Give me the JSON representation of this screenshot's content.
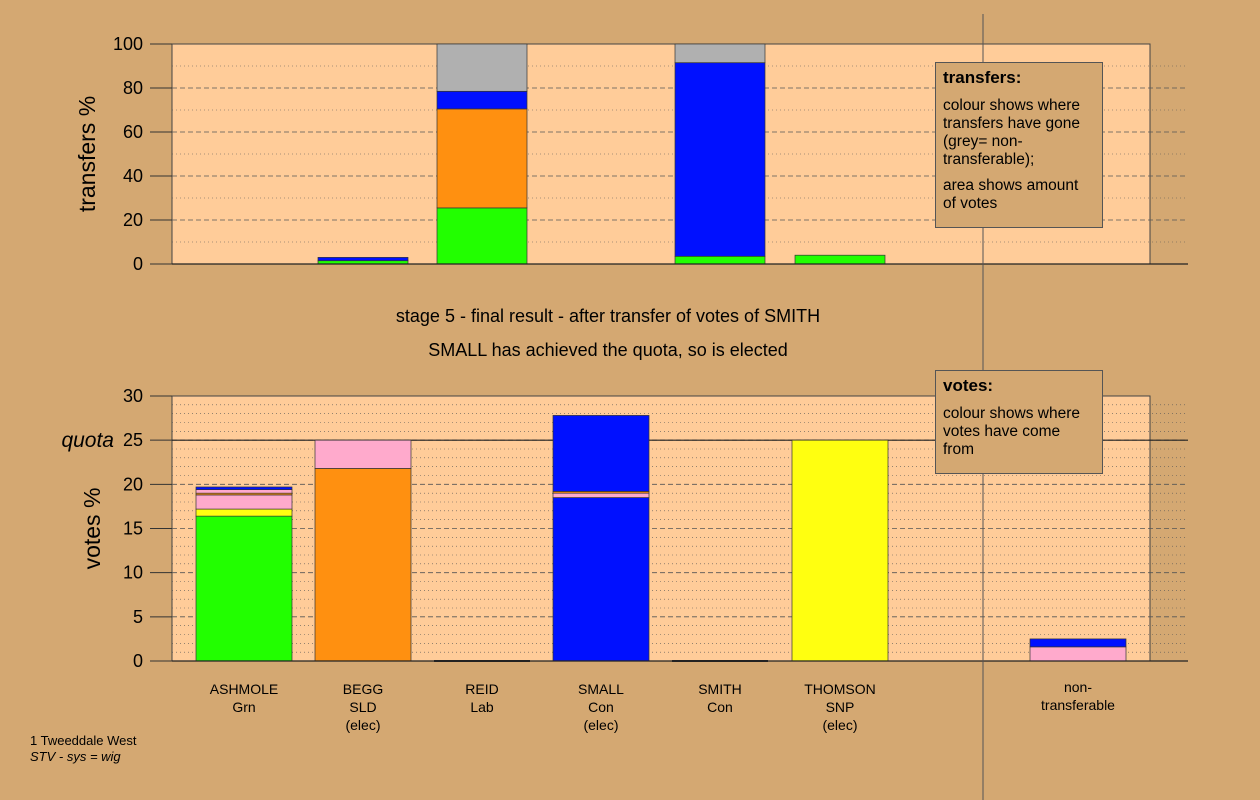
{
  "captions": {
    "line1": "stage 5 - final result - after transfer of votes of SMITH",
    "line2": "SMALL has achieved the quota, so is elected"
  },
  "footer": {
    "ward": "1 Tweeddale West",
    "system": "STV - sys = wig"
  },
  "legend_transfers": {
    "title": "transfers:",
    "para1": "colour shows where transfers have gone (grey= non-transferable);",
    "para2": "area shows amount of votes"
  },
  "legend_votes": {
    "title": "votes:",
    "para1": "colour shows where votes have come from"
  },
  "candidates": [
    {
      "name": "ASHMOLE",
      "party": "Grn",
      "status": ""
    },
    {
      "name": "BEGG",
      "party": "SLD",
      "status": "(elec)"
    },
    {
      "name": "REID",
      "party": "Lab",
      "status": ""
    },
    {
      "name": "SMALL",
      "party": "Con",
      "status": "(elec)"
    },
    {
      "name": "SMITH",
      "party": "Con",
      "status": ""
    },
    {
      "name": "THOMSON",
      "party": "SNP",
      "status": "(elec)"
    },
    {
      "name": "non-",
      "party": "transferable",
      "status": ""
    }
  ],
  "colors": {
    "background": "#d4a872",
    "plot_area": "#ffcc99",
    "green": "#22ff00",
    "orange": "#ff9010",
    "blue": "#0010ff",
    "yellow": "#ffff10",
    "pink": "#ffaacc",
    "grey": "#b0b0b0"
  },
  "chart_data": [
    {
      "type": "bar",
      "stacked": true,
      "ylabel": "transfers %",
      "ylim": [
        0,
        100
      ],
      "yticks": [
        0,
        20,
        40,
        60,
        80,
        100
      ],
      "categories": [
        "ASHMOLE",
        "BEGG",
        "REID",
        "SMALL",
        "SMITH",
        "THOMSON",
        "non-transferable"
      ],
      "bars": [
        {
          "category": "BEGG",
          "segments": [
            {
              "color": "green",
              "value": 1.5
            },
            {
              "color": "blue",
              "value": 1.5
            }
          ]
        },
        {
          "category": "REID",
          "segments": [
            {
              "color": "green",
              "value": 25.5
            },
            {
              "color": "orange",
              "value": 45
            },
            {
              "color": "blue",
              "value": 8
            },
            {
              "color": "grey",
              "value": 21.5
            }
          ]
        },
        {
          "category": "SMITH",
          "segments": [
            {
              "color": "green",
              "value": 3.5
            },
            {
              "color": "blue",
              "value": 88
            },
            {
              "color": "grey",
              "value": 8.5
            }
          ]
        },
        {
          "category": "THOMSON",
          "segments": [
            {
              "color": "green",
              "value": 4
            }
          ]
        }
      ]
    },
    {
      "type": "bar",
      "stacked": true,
      "ylabel": "votes %",
      "ylim": [
        0,
        30
      ],
      "yticks": [
        0,
        5,
        10,
        15,
        20,
        25,
        30
      ],
      "quota": 25,
      "quota_label": "quota",
      "categories": [
        "ASHMOLE",
        "BEGG",
        "REID",
        "SMALL",
        "SMITH",
        "THOMSON",
        "non-transferable"
      ],
      "bars": [
        {
          "category": "ASHMOLE",
          "segments": [
            {
              "color": "green",
              "value": 16.4
            },
            {
              "color": "yellow",
              "value": 0.8
            },
            {
              "color": "pink",
              "value": 1.6
            },
            {
              "color": "orange",
              "value": 0.2
            },
            {
              "color": "pink",
              "value": 0.4
            },
            {
              "color": "blue",
              "value": 0.3
            }
          ]
        },
        {
          "category": "BEGG",
          "segments": [
            {
              "color": "orange",
              "value": 21.8
            },
            {
              "color": "pink",
              "value": 3.2
            }
          ]
        },
        {
          "category": "SMALL",
          "segments": [
            {
              "color": "blue",
              "value": 18.5
            },
            {
              "color": "pink",
              "value": 0.5
            },
            {
              "color": "orange",
              "value": 0.2
            },
            {
              "color": "blue",
              "value": 8.6
            }
          ]
        },
        {
          "category": "THOMSON",
          "segments": [
            {
              "color": "yellow",
              "value": 25.0
            }
          ]
        },
        {
          "category": "non-transferable",
          "segments": [
            {
              "color": "pink",
              "value": 1.6
            },
            {
              "color": "blue",
              "value": 0.9
            }
          ]
        }
      ]
    }
  ]
}
